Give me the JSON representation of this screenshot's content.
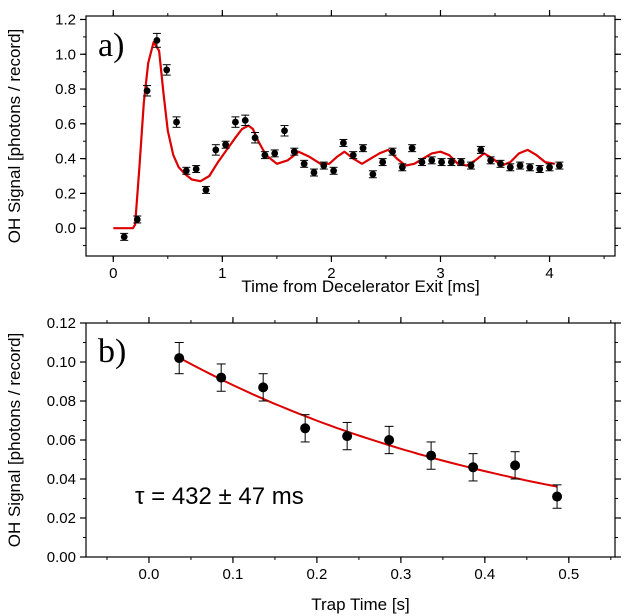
{
  "chart_data": [
    {
      "type": "scatter",
      "panel_label": "a)",
      "xlabel": "Time from Decelerator Exit [ms]",
      "ylabel": "OH Signal [photons / record]",
      "xlim": [
        -0.25,
        4.6
      ],
      "ylim": [
        -0.16,
        1.22
      ],
      "xticks": [
        0,
        1,
        2,
        3,
        4
      ],
      "xtick_labels": [
        "0",
        "1",
        "2",
        "3",
        "4"
      ],
      "yticks": [
        0.0,
        0.2,
        0.4,
        0.6,
        0.8,
        1.0,
        1.2
      ],
      "ytick_labels": [
        "0.0",
        "0.2",
        "0.4",
        "0.6",
        "0.8",
        "1.0",
        "1.2"
      ],
      "grid": false,
      "series": [
        {
          "kind": "points",
          "color": "#000000",
          "x": [
            0.1,
            0.22,
            0.31,
            0.4,
            0.49,
            0.58,
            0.67,
            0.76,
            0.85,
            0.94,
            1.03,
            1.12,
            1.21,
            1.3,
            1.39,
            1.48,
            1.57,
            1.66,
            1.75,
            1.84,
            1.93,
            2.02,
            2.11,
            2.2,
            2.29,
            2.38,
            2.47,
            2.56,
            2.65,
            2.74,
            2.83,
            2.92,
            3.01,
            3.1,
            3.19,
            3.28,
            3.37,
            3.46,
            3.55,
            3.64,
            3.73,
            3.82,
            3.91,
            4.0,
            4.09
          ],
          "y": [
            -0.05,
            0.05,
            0.79,
            1.08,
            0.91,
            0.61,
            0.33,
            0.34,
            0.22,
            0.45,
            0.48,
            0.61,
            0.62,
            0.52,
            0.42,
            0.43,
            0.56,
            0.44,
            0.37,
            0.32,
            0.36,
            0.33,
            0.49,
            0.42,
            0.46,
            0.31,
            0.38,
            0.44,
            0.35,
            0.46,
            0.38,
            0.39,
            0.38,
            0.38,
            0.38,
            0.36,
            0.45,
            0.39,
            0.37,
            0.35,
            0.36,
            0.35,
            0.34,
            0.35,
            0.36
          ],
          "err": [
            0.02,
            0.02,
            0.03,
            0.04,
            0.03,
            0.03,
            0.02,
            0.02,
            0.02,
            0.03,
            0.02,
            0.03,
            0.03,
            0.03,
            0.02,
            0.02,
            0.03,
            0.02,
            0.02,
            0.02,
            0.02,
            0.02,
            0.02,
            0.02,
            0.02,
            0.02,
            0.02,
            0.02,
            0.02,
            0.02,
            0.02,
            0.02,
            0.02,
            0.02,
            0.02,
            0.02,
            0.02,
            0.02,
            0.02,
            0.02,
            0.02,
            0.02,
            0.02,
            0.02,
            0.02
          ]
        },
        {
          "kind": "line",
          "color": "#dd0000",
          "x": [
            0.0,
            0.18,
            0.2,
            0.24,
            0.28,
            0.32,
            0.37,
            0.42,
            0.46,
            0.5,
            0.55,
            0.6,
            0.66,
            0.72,
            0.8,
            0.88,
            0.96,
            1.04,
            1.12,
            1.18,
            1.24,
            1.28,
            1.33,
            1.4,
            1.5,
            1.6,
            1.7,
            1.8,
            1.9,
            1.98,
            2.05,
            2.12,
            2.2,
            2.28,
            2.36,
            2.44,
            2.52,
            2.6,
            2.68,
            2.76,
            2.84,
            2.92,
            3.0,
            3.08,
            3.16,
            3.24,
            3.32,
            3.4,
            3.48,
            3.56,
            3.64,
            3.72,
            3.8,
            3.88,
            3.96,
            4.05
          ],
          "y": [
            0.0,
            0.0,
            0.02,
            0.35,
            0.72,
            0.95,
            1.07,
            1.02,
            0.78,
            0.56,
            0.42,
            0.35,
            0.31,
            0.28,
            0.27,
            0.3,
            0.38,
            0.45,
            0.52,
            0.57,
            0.59,
            0.57,
            0.5,
            0.42,
            0.37,
            0.39,
            0.44,
            0.41,
            0.37,
            0.37,
            0.41,
            0.44,
            0.4,
            0.37,
            0.4,
            0.43,
            0.45,
            0.4,
            0.36,
            0.37,
            0.4,
            0.43,
            0.44,
            0.42,
            0.37,
            0.36,
            0.39,
            0.43,
            0.4,
            0.36,
            0.38,
            0.43,
            0.45,
            0.42,
            0.38,
            0.37
          ]
        }
      ]
    },
    {
      "type": "scatter",
      "panel_label": "b)",
      "annotation": "τ = 432 ± 47 ms",
      "xlabel": "Trap Time [s]",
      "ylabel": "OH Signal [photons / record]",
      "xlim": [
        -0.075,
        0.555
      ],
      "ylim": [
        0.0,
        0.12
      ],
      "xticks": [
        0.0,
        0.1,
        0.2,
        0.3,
        0.4,
        0.5
      ],
      "xtick_labels": [
        "0.0",
        "0.1",
        "0.2",
        "0.3",
        "0.4",
        "0.5"
      ],
      "yticks": [
        0.0,
        0.02,
        0.04,
        0.06,
        0.08,
        0.1,
        0.12
      ],
      "ytick_labels": [
        "0.00",
        "0.02",
        "0.04",
        "0.06",
        "0.08",
        "0.10",
        "0.12"
      ],
      "grid": false,
      "series": [
        {
          "kind": "points",
          "color": "#000000",
          "x": [
            0.036,
            0.086,
            0.136,
            0.186,
            0.236,
            0.286,
            0.336,
            0.386,
            0.436,
            0.486
          ],
          "y": [
            0.102,
            0.092,
            0.087,
            0.066,
            0.062,
            0.06,
            0.052,
            0.046,
            0.047,
            0.031
          ],
          "err": [
            0.008,
            0.007,
            0.007,
            0.007,
            0.007,
            0.007,
            0.007,
            0.007,
            0.007,
            0.006
          ]
        },
        {
          "kind": "fit",
          "color": "#dd0000",
          "model": "exponential decay",
          "amplitude": 0.1111,
          "tau": 0.432,
          "x_range": [
            0.036,
            0.486
          ]
        }
      ]
    }
  ]
}
